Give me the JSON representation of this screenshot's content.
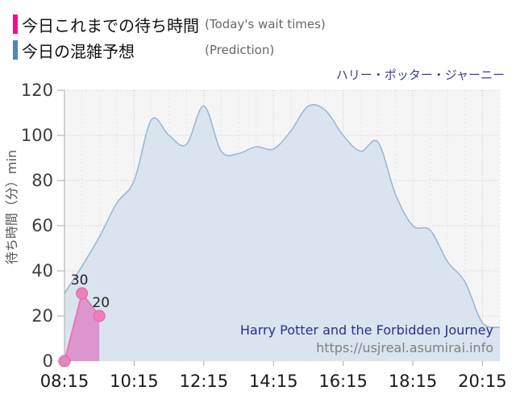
{
  "legend": {
    "items": [
      {
        "label_jp": "今日これまでの待ち時間",
        "label_en": "(Today's wait times)",
        "color": "#F10D8E"
      },
      {
        "label_jp": "今日の混雑予想",
        "label_en": "(Prediction)",
        "color": "#4E86BD"
      }
    ]
  },
  "chart": {
    "title": "ハリー・ポッター・ジャーニー"
  },
  "watermark": {
    "line1": "Harry Potter and the Forbidden Journey",
    "line2": "https://usjreal.asumirai.info"
  },
  "chart_data": {
    "type": "area",
    "title": "ハリー・ポッター・ジャーニー",
    "plot_bg": "#F5F5F5",
    "x_axis": {
      "major_ticks": [
        "08:15",
        "10:15",
        "12:15",
        "14:15",
        "16:15",
        "18:15",
        "20:15"
      ],
      "minor_step_minutes": 30,
      "domain": [
        "08:15",
        "20:45"
      ]
    },
    "y_axis": {
      "title": "待ち時間（分）min",
      "ticks": [
        0,
        20,
        40,
        60,
        80,
        100,
        120
      ],
      "lim": [
        0,
        120
      ]
    },
    "series": [
      {
        "name": "today-wait-times",
        "legend_jp": "今日これまでの待ち時間",
        "legend_en": "(Today's wait times)",
        "style": "straight-line-with-points",
        "line_color": "#E779B5",
        "fill_color": "rgba(224,96,184,0.6)",
        "point_fill": "#EF7FBA",
        "point_stroke": "#E05FA5",
        "times": [
          "08:15",
          "08:45",
          "09:15"
        ],
        "values": [
          0,
          30,
          20
        ],
        "point_labels": [
          "",
          "30",
          "20"
        ]
      },
      {
        "name": "prediction",
        "legend_jp": "今日の混雑予想",
        "legend_en": "(Prediction)",
        "style": "smooth-area",
        "line_color": "#9DB8D2",
        "fill_color": "#D9E4EF",
        "times": [
          "08:15",
          "08:45",
          "09:15",
          "09:45",
          "10:15",
          "10:45",
          "11:15",
          "11:45",
          "12:15",
          "12:45",
          "13:15",
          "13:45",
          "14:15",
          "14:45",
          "15:15",
          "15:45",
          "16:15",
          "16:45",
          "17:15",
          "17:45",
          "18:15",
          "18:45",
          "19:15",
          "19:45",
          "20:15",
          "20:45"
        ],
        "values": [
          30,
          42,
          55,
          70,
          80,
          107,
          100,
          96,
          113,
          93,
          92,
          95,
          94,
          102,
          113,
          111,
          100,
          93,
          97,
          74,
          60,
          58,
          44,
          35,
          17,
          15
        ]
      }
    ]
  }
}
